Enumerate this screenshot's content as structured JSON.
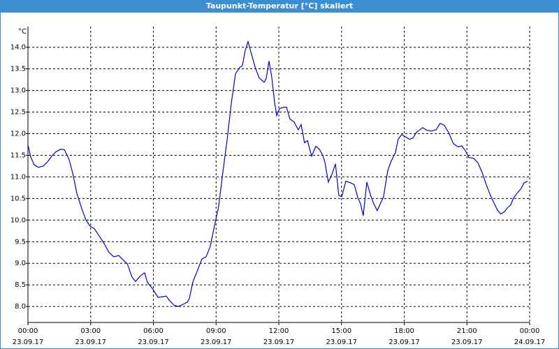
{
  "chart_data": {
    "type": "line",
    "title": "Taupunkt-Temperatur [°C] skaliert",
    "y_unit": "°C",
    "x": [
      0,
      0.13,
      0.3,
      0.5,
      0.73,
      0.94,
      1.17,
      1.34,
      1.57,
      1.74,
      1.97,
      2.14,
      2.34,
      2.57,
      2.77,
      2.97,
      3.18,
      3.41,
      3.64,
      3.88,
      4.11,
      4.34,
      4.51,
      4.75,
      4.98,
      5.15,
      5.38,
      5.58,
      5.72,
      5.95,
      6.22,
      6.48,
      6.62,
      6.75,
      6.99,
      7.19,
      7.42,
      7.62,
      7.72,
      7.89,
      8.09,
      8.32,
      8.52,
      8.72,
      8.92,
      9.12,
      9.32,
      9.53,
      9.73,
      9.93,
      10.13,
      10.26,
      10.39,
      10.53,
      10.7,
      10.86,
      11.06,
      11.3,
      11.4,
      11.53,
      11.66,
      11.8,
      11.9,
      12.03,
      12.23,
      12.37,
      12.53,
      12.73,
      12.93,
      13.07,
      13.23,
      13.37,
      13.57,
      13.77,
      13.94,
      14.1,
      14.2,
      14.37,
      14.54,
      14.71,
      14.87,
      15.01,
      15.21,
      15.44,
      15.61,
      15.78,
      15.91,
      16.04,
      16.21,
      16.38,
      16.54,
      16.71,
      16.84,
      17.01,
      17.21,
      17.38,
      17.58,
      17.71,
      17.88,
      18.05,
      18.25,
      18.42,
      18.58,
      18.75,
      18.88,
      19.08,
      19.28,
      19.52,
      19.72,
      19.92,
      20.12,
      20.35,
      20.59,
      20.75,
      20.92,
      21.09,
      21.32,
      21.52,
      21.72,
      21.92,
      22.09,
      22.26,
      22.46,
      22.62,
      22.79,
      22.93,
      23.09,
      23.23,
      23.43,
      23.59,
      23.73,
      23.9
    ],
    "series": [
      {
        "color": "#0000c8",
        "values": [
          11.74,
          11.46,
          11.28,
          11.22,
          11.25,
          11.35,
          11.5,
          11.58,
          11.64,
          11.63,
          11.4,
          11.09,
          10.62,
          10.27,
          10.01,
          9.86,
          9.8,
          9.63,
          9.46,
          9.25,
          9.15,
          9.18,
          9.1,
          8.99,
          8.68,
          8.58,
          8.71,
          8.78,
          8.55,
          8.42,
          8.21,
          8.23,
          8.24,
          8.15,
          8.03,
          8.0,
          8.05,
          8.1,
          8.18,
          8.57,
          8.81,
          9.1,
          9.15,
          9.39,
          9.86,
          10.31,
          11.09,
          11.87,
          12.71,
          13.39,
          13.53,
          13.58,
          13.92,
          14.13,
          13.83,
          13.55,
          13.29,
          13.19,
          13.28,
          13.68,
          13.32,
          12.72,
          12.42,
          12.58,
          12.61,
          12.61,
          12.34,
          12.27,
          12.09,
          12.21,
          11.79,
          11.84,
          11.48,
          11.71,
          11.64,
          11.5,
          11.35,
          10.88,
          11.06,
          11.3,
          10.57,
          10.54,
          10.9,
          10.86,
          10.82,
          10.52,
          10.38,
          10.1,
          10.88,
          10.59,
          10.38,
          10.22,
          10.36,
          10.54,
          11.14,
          11.37,
          11.56,
          11.87,
          11.98,
          11.93,
          11.87,
          11.9,
          12.03,
          12.09,
          12.14,
          12.08,
          12.06,
          12.09,
          12.24,
          12.19,
          12.03,
          11.77,
          11.69,
          11.72,
          11.61,
          11.45,
          11.43,
          11.33,
          11.11,
          10.83,
          10.61,
          10.43,
          10.23,
          10.14,
          10.19,
          10.28,
          10.35,
          10.51,
          10.64,
          10.73,
          10.86,
          10.9
        ]
      }
    ],
    "xlim": [
      0,
      24
    ],
    "xticks": [
      {
        "value": 0,
        "label": [
          "00:00",
          "23.09.17"
        ]
      },
      {
        "value": 3,
        "label": [
          "03:00",
          "23.09.17"
        ]
      },
      {
        "value": 6,
        "label": [
          "06:00",
          "23.09.17"
        ]
      },
      {
        "value": 9,
        "label": [
          "09:00",
          "23.09.17"
        ]
      },
      {
        "value": 12,
        "label": [
          "12:00",
          "23.09.17"
        ]
      },
      {
        "value": 15,
        "label": [
          "15:00",
          "23.09.17"
        ]
      },
      {
        "value": 18,
        "label": [
          "18:00",
          "23.09.17"
        ]
      },
      {
        "value": 21,
        "label": [
          "21:00",
          "23.09.17"
        ]
      },
      {
        "value": 24,
        "label": [
          "00:00",
          "24.09.17"
        ]
      }
    ],
    "ylim": [
      7.63,
      14.48
    ],
    "yticks": [
      {
        "value": 8,
        "label": "8.0"
      },
      8.5,
      {
        "value": 9,
        "label": "9.0"
      },
      9.5,
      {
        "value": 10,
        "label": "10.0"
      },
      10.5,
      {
        "value": 11,
        "label": "11.0"
      },
      11.5,
      {
        "value": 12,
        "label": "12.0"
      },
      12.5,
      {
        "value": 13,
        "label": "13.0"
      },
      13.5,
      {
        "value": 14,
        "label": "14.0"
      }
    ],
    "grid": true
  }
}
